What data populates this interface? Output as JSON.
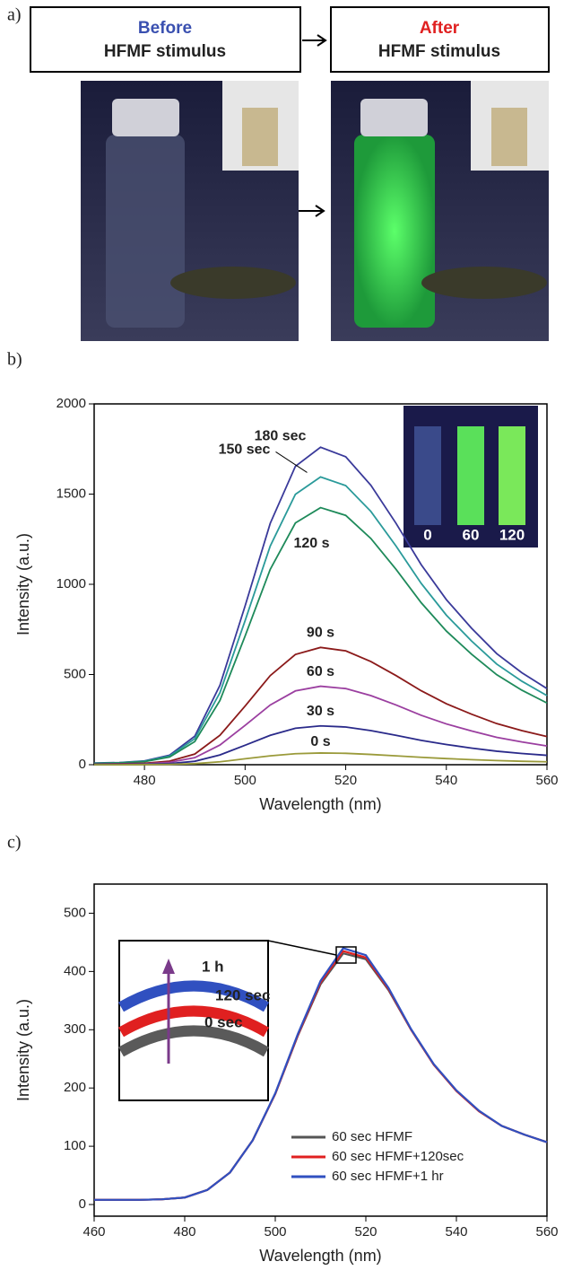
{
  "panel_labels": [
    "a)",
    "b)",
    "c)"
  ],
  "panel_a": {
    "before": {
      "word": "Before",
      "text": "HFMF stimulus"
    },
    "after": {
      "word": "After",
      "text": "HFMF stimulus"
    }
  },
  "chart_data": [
    {
      "type": "line",
      "xlabel": "Wavelength (nm)",
      "ylabel": "Intensity (a.u.)",
      "x": [
        470,
        475,
        480,
        485,
        490,
        495,
        500,
        505,
        510,
        515,
        520,
        525,
        530,
        535,
        540,
        545,
        550,
        555,
        560
      ],
      "xlim": [
        470,
        560
      ],
      "xticks": [
        480,
        500,
        520,
        540,
        560
      ],
      "ylim": [
        0,
        2000
      ],
      "yticks": [
        0,
        500,
        1000,
        1500,
        2000
      ],
      "inset_labels": [
        "0",
        "60",
        "120"
      ],
      "series": [
        {
          "name": "180 sec",
          "color": "#3a3a9a",
          "values": [
            9,
            12,
            21,
            53,
            158,
            440,
            880,
            1338,
            1654,
            1760,
            1707,
            1549,
            1338,
            1109,
            915,
            757,
            616,
            510,
            422
          ]
        },
        {
          "name": "150 sec",
          "color": "#2a9a9a",
          "values": [
            8,
            11,
            19,
            48,
            144,
            399,
            798,
            1212,
            1499,
            1595,
            1547,
            1404,
            1212,
            1005,
            829,
            686,
            558,
            463,
            383
          ]
        },
        {
          "name": "120 s",
          "color": "#1e8a5a",
          "values": [
            7,
            10,
            17,
            43,
            128,
            356,
            713,
            1083,
            1340,
            1425,
            1382,
            1254,
            1083,
            898,
            741,
            613,
            499,
            413,
            342
          ]
        },
        {
          "name": "90 s",
          "color": "#8b1a1a",
          "values": [
            3,
            5,
            8,
            20,
            59,
            163,
            325,
            494,
            611,
            650,
            631,
            572,
            494,
            410,
            338,
            280,
            228,
            189,
            156
          ]
        },
        {
          "name": "60 s",
          "color": "#9b3fa0",
          "values": [
            2,
            3,
            5,
            13,
            39,
            109,
            218,
            331,
            409,
            435,
            422,
            383,
            331,
            274,
            226,
            187,
            152,
            126,
            104
          ]
        },
        {
          "name": "30 s",
          "color": "#2a2a8a",
          "values": [
            1,
            2,
            3,
            6,
            19,
            54,
            108,
            163,
            202,
            215,
            209,
            189,
            163,
            135,
            112,
            92,
            75,
            62,
            52
          ]
        },
        {
          "name": "0 s",
          "color": "#9a9a3a",
          "values": [
            0,
            0,
            1,
            2,
            6,
            16,
            33,
            49,
            61,
            65,
            63,
            57,
            49,
            41,
            34,
            28,
            23,
            19,
            16
          ]
        }
      ]
    },
    {
      "type": "line",
      "xlabel": "Wavelength (nm)",
      "ylabel": "Intensity (a.u.)",
      "x": [
        460,
        465,
        470,
        475,
        480,
        485,
        490,
        495,
        500,
        505,
        510,
        515,
        520,
        525,
        530,
        535,
        540,
        545,
        550,
        555,
        560
      ],
      "xlim": [
        460,
        560
      ],
      "xticks": [
        460,
        480,
        500,
        520,
        540,
        560
      ],
      "ylim": [
        -20,
        550
      ],
      "yticks": [
        0,
        100,
        200,
        300,
        400,
        500
      ],
      "legend": "lower right",
      "inset_labels": [
        "1 h",
        "120 sec",
        "0 sec"
      ],
      "series": [
        {
          "name": "60 sec HFMF",
          "color": "#555555",
          "values": [
            8,
            8,
            8,
            9,
            12,
            25,
            55,
            110,
            190,
            290,
            378,
            431,
            421,
            368,
            300,
            240,
            195,
            160,
            135,
            120,
            107
          ]
        },
        {
          "name": "60 sec HFMF+120sec",
          "color": "#e02020",
          "values": [
            8,
            8,
            8,
            9,
            12,
            25,
            55,
            110,
            190,
            291,
            381,
            435,
            424,
            370,
            300,
            240,
            195,
            160,
            135,
            120,
            107
          ]
        },
        {
          "name": "60 sec HFMF+1 hr",
          "color": "#3050c0",
          "values": [
            8,
            8,
            8,
            9,
            12,
            25,
            55,
            110,
            191,
            293,
            384,
            440,
            428,
            372,
            301,
            241,
            196,
            161,
            135,
            120,
            107
          ]
        }
      ]
    }
  ]
}
